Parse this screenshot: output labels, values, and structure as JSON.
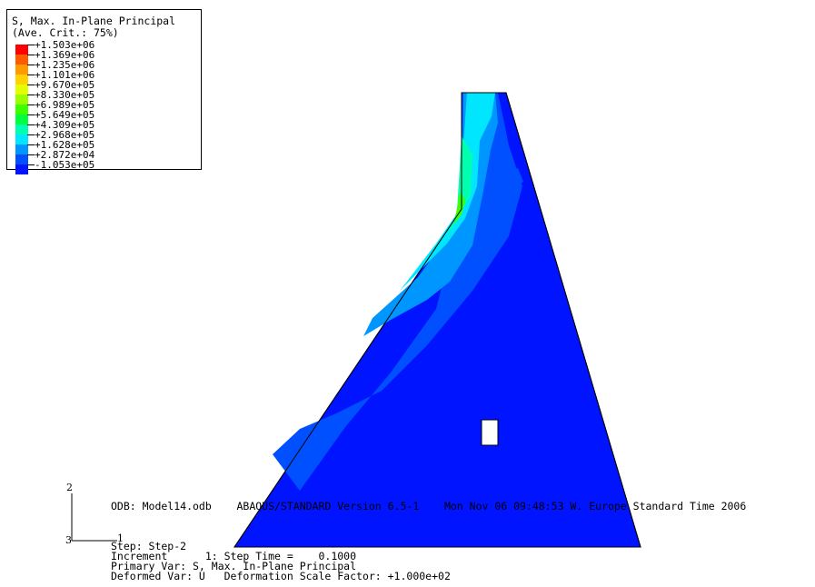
{
  "legend": {
    "title_line1": "S, Max. In-Plane Principal",
    "title_line2": "(Ave. Crit.: 75%)",
    "entries": [
      {
        "value": "+1.503e+06",
        "color": "#ff0000"
      },
      {
        "value": "+1.369e+06",
        "color": "#ff5a00"
      },
      {
        "value": "+1.235e+06",
        "color": "#ff9a00"
      },
      {
        "value": "+1.101e+06",
        "color": "#ffd200"
      },
      {
        "value": "+9.670e+05",
        "color": "#e1ff00"
      },
      {
        "value": "+8.330e+05",
        "color": "#9cff00"
      },
      {
        "value": "+6.989e+05",
        "color": "#3cff00"
      },
      {
        "value": "+5.649e+05",
        "color": "#00ff3c"
      },
      {
        "value": "+4.309e+05",
        "color": "#00ffae"
      },
      {
        "value": "+2.968e+05",
        "color": "#00e6ff"
      },
      {
        "value": "+1.628e+05",
        "color": "#0096ff"
      },
      {
        "value": "+2.872e+04",
        "color": "#0050ff"
      },
      {
        "value": "-1.053e+05",
        "color": "#0014ff"
      }
    ]
  },
  "triad": {
    "axis_vertical": "2",
    "axis_horizontal": "1",
    "axis_out": "3"
  },
  "info": {
    "odb_line": "ODB: Model14.odb    ABAQUS/STANDARD Version 6.5-1    Mon Nov 06 09:48:53 W. Europe Standard Time 2006",
    "step_line": "Step: Step-2",
    "increment_line": "Increment      1: Step Time =    0.1000",
    "primary_line": "Primary Var: S, Max. In-Plane Principal",
    "deformed_line": "Deformed Var: U   Deformation Scale Factor: +1.000e+02"
  },
  "contour_colors": {
    "deep_blue": "#0014ff",
    "blue": "#0050ff",
    "mid_blue": "#0096ff",
    "light_blue": "#00e6ff",
    "cyan": "#00ffae",
    "green": "#3cff00"
  }
}
